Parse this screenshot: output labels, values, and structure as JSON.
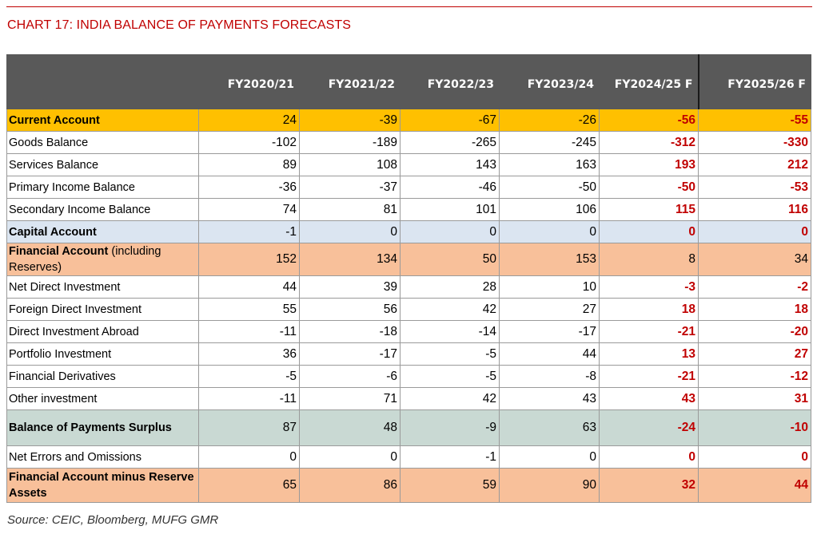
{
  "title": "CHART 17: INDIA BALANCE OF PAYMENTS FORECASTS",
  "source": "Source: CEIC, Bloomberg, MUFG GMR",
  "colors": {
    "title_red": "#c00000",
    "header_bg": "#595959",
    "current_account_bg": "#ffc000",
    "capital_account_bg": "#dbe5f1",
    "financial_account_bg": "#f8c09a",
    "bop_surplus_bg": "#c9d9d3",
    "forecast_text": "#c00000"
  },
  "chart_data": {
    "type": "table",
    "columns": [
      "FY2020/21",
      "FY2021/22",
      "FY2022/23",
      "FY2023/24",
      "FY2024/25 F",
      "FY2025/26 F"
    ],
    "forecast_columns": [
      "FY2024/25 F",
      "FY2025/26 F"
    ],
    "rows": [
      {
        "label": "Current Account",
        "values": [
          "24",
          "-39",
          "-67",
          "-26",
          "-56",
          "-55"
        ]
      },
      {
        "label": "Goods Balance",
        "values": [
          "-102",
          "-189",
          "-265",
          "-245",
          "-312",
          "-330"
        ]
      },
      {
        "label": "Services Balance",
        "values": [
          "89",
          "108",
          "143",
          "163",
          "193",
          "212"
        ]
      },
      {
        "label": "Primary Income Balance",
        "values": [
          "-36",
          "-37",
          "-46",
          "-50",
          "-50",
          "-53"
        ]
      },
      {
        "label": "Secondary Income Balance",
        "values": [
          "74",
          "81",
          "101",
          "106",
          "115",
          "116"
        ]
      },
      {
        "label": "Capital Account",
        "values": [
          "-1",
          "0",
          "0",
          "0",
          "0",
          "0"
        ]
      },
      {
        "label": "Financial Account",
        "label_suffix": " (including Reserves)",
        "values": [
          "152",
          "134",
          "50",
          "153",
          "8",
          "34"
        ]
      },
      {
        "label": "Net Direct Investment",
        "values": [
          "44",
          "39",
          "28",
          "10",
          "-3",
          "-2"
        ]
      },
      {
        "label": "Foreign Direct Investment",
        "values": [
          "55",
          "56",
          "42",
          "27",
          "18",
          "18"
        ]
      },
      {
        "label": "Direct Investment Abroad",
        "values": [
          "-11",
          "-18",
          "-14",
          "-17",
          "-21",
          "-20"
        ]
      },
      {
        "label": "Portfolio Investment",
        "values": [
          "36",
          "-17",
          "-5",
          "44",
          "13",
          "27"
        ]
      },
      {
        "label": "Financial Derivatives",
        "values": [
          "-5",
          "-6",
          "-5",
          "-8",
          "-21",
          "-12"
        ]
      },
      {
        "label": "Other investment",
        "values": [
          "-11",
          "71",
          "42",
          "43",
          "43",
          "31"
        ]
      },
      {
        "label": "Balance of Payments Surplus",
        "values": [
          "87",
          "48",
          "-9",
          "63",
          "-24",
          "-10"
        ]
      },
      {
        "label": "Net Errors and Omissions",
        "values": [
          "0",
          "0",
          "-1",
          "0",
          "0",
          "0"
        ]
      },
      {
        "label": "Financial Account minus Reserve Assets",
        "values": [
          "65",
          "86",
          "59",
          "90",
          "32",
          "44"
        ]
      }
    ]
  }
}
